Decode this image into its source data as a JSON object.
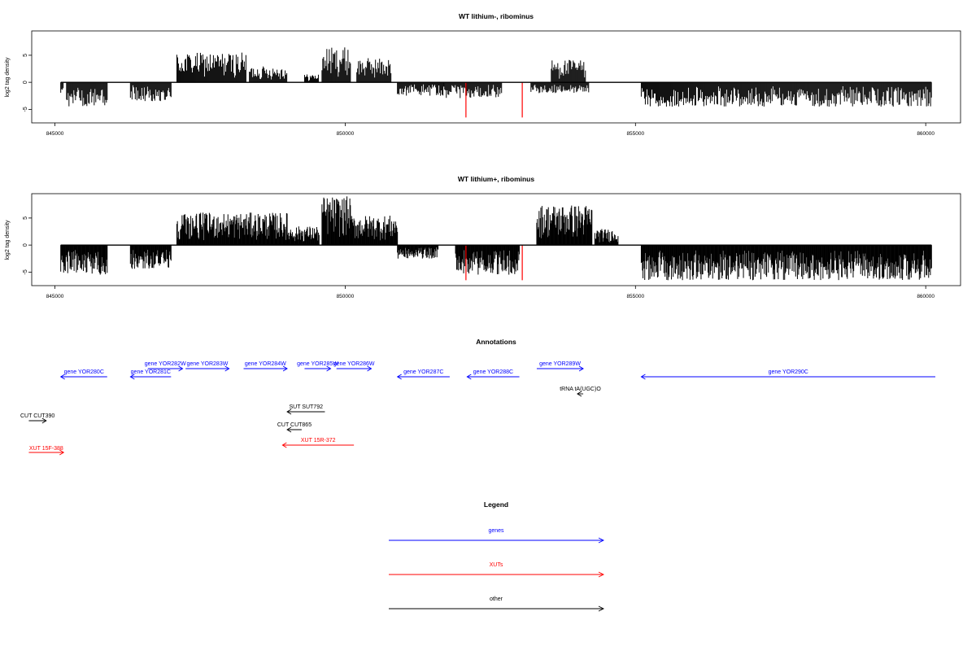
{
  "chart_data": [
    {
      "type": "bar",
      "title": "WT lithium-, ribominus",
      "xlabel": "",
      "ylabel": "log2 tag density",
      "xlim": [
        844600,
        860600
      ],
      "ylim": [
        -7.5,
        9.5
      ],
      "xticks": [
        "845000",
        "850000",
        "855000",
        "860000"
      ],
      "yticks": [
        "-5",
        "0",
        "5"
      ],
      "baseline": 0,
      "colors": {
        "default": "#000000",
        "highlight": "#ff0000"
      },
      "segments": [
        {
          "start": 845100,
          "end": 845150,
          "dir": -1,
          "amp": 2.0,
          "step": 14
        },
        {
          "start": 845200,
          "end": 845900,
          "dir": -1,
          "amp": 4.5,
          "step": 14
        },
        {
          "start": 846300,
          "end": 847000,
          "dir": -1,
          "amp": 3.5,
          "step": 14
        },
        {
          "start": 847100,
          "end": 848300,
          "dir": 1,
          "amp": 5.5,
          "step": 14
        },
        {
          "start": 848350,
          "end": 849000,
          "dir": 1,
          "amp": 3.0,
          "step": 14
        },
        {
          "start": 849300,
          "end": 849550,
          "dir": 1,
          "amp": 1.5,
          "step": 14
        },
        {
          "start": 849600,
          "end": 850100,
          "dir": 1,
          "amp": 6.5,
          "step": 14
        },
        {
          "start": 850200,
          "end": 850800,
          "dir": 1,
          "amp": 4.5,
          "step": 14
        },
        {
          "start": 850900,
          "end": 851700,
          "dir": -1,
          "amp": 2.5,
          "step": 14
        },
        {
          "start": 851700,
          "end": 852700,
          "dir": -1,
          "amp": 3.0,
          "step": 14
        },
        {
          "start": 853200,
          "end": 854200,
          "dir": -1,
          "amp": 2.0,
          "step": 14
        },
        {
          "start": 853550,
          "end": 854150,
          "dir": 1,
          "amp": 4.2,
          "step": 14
        },
        {
          "start": 855100,
          "end": 860100,
          "dir": -1,
          "amp": 4.5,
          "step": 14
        }
      ],
      "highlights": [
        {
          "x": 852080,
          "value": -6.5
        },
        {
          "x": 853050,
          "value": -6.5
        }
      ]
    },
    {
      "type": "bar",
      "title": "WT lithium+, ribominus",
      "xlabel": "",
      "ylabel": "log2 tag density",
      "xlim": [
        844600,
        860600
      ],
      "ylim": [
        -7.5,
        9.5
      ],
      "xticks": [
        "845000",
        "850000",
        "855000",
        "860000"
      ],
      "yticks": [
        "-5",
        "0",
        "5"
      ],
      "baseline": 0,
      "colors": {
        "default": "#000000",
        "highlight": "#ff0000"
      },
      "segments": [
        {
          "start": 845100,
          "end": 845900,
          "dir": -1,
          "amp": 5.5,
          "step": 10
        },
        {
          "start": 846300,
          "end": 847000,
          "dir": -1,
          "amp": 4.5,
          "step": 10
        },
        {
          "start": 847100,
          "end": 849000,
          "dir": 1,
          "amp": 6.0,
          "step": 10
        },
        {
          "start": 849000,
          "end": 849550,
          "dir": 1,
          "amp": 3.5,
          "step": 10
        },
        {
          "start": 849600,
          "end": 850100,
          "dir": 1,
          "amp": 9.0,
          "step": 10
        },
        {
          "start": 850100,
          "end": 850900,
          "dir": 1,
          "amp": 5.5,
          "step": 10
        },
        {
          "start": 850900,
          "end": 851600,
          "dir": -1,
          "amp": 2.5,
          "step": 10
        },
        {
          "start": 851900,
          "end": 853000,
          "dir": -1,
          "amp": 5.5,
          "step": 10
        },
        {
          "start": 853300,
          "end": 854250,
          "dir": 1,
          "amp": 7.5,
          "step": 10
        },
        {
          "start": 854300,
          "end": 854700,
          "dir": 1,
          "amp": 3.0,
          "step": 10
        },
        {
          "start": 855100,
          "end": 860100,
          "dir": -1,
          "amp": 6.5,
          "step": 10
        }
      ],
      "highlights": [
        {
          "x": 852080,
          "value": -6.5
        },
        {
          "x": 853050,
          "value": -6.5
        }
      ]
    }
  ],
  "annotations": {
    "title": "Annotations",
    "features": [
      {
        "label": "gene YOR280C",
        "start": 845100,
        "end": 845900,
        "strand": "-",
        "kind": "genes",
        "row": 0
      },
      {
        "label": "gene YOR281C",
        "start": 846300,
        "end": 847000,
        "strand": "-",
        "kind": "genes",
        "row": 0
      },
      {
        "label": "gene YOR282W",
        "start": 846600,
        "end": 847200,
        "strand": "+",
        "kind": "genes",
        "row": 1
      },
      {
        "label": "gene YOR283W",
        "start": 847250,
        "end": 848000,
        "strand": "+",
        "kind": "genes",
        "row": 1
      },
      {
        "label": "gene YOR284W",
        "start": 848250,
        "end": 849000,
        "strand": "+",
        "kind": "genes",
        "row": 1
      },
      {
        "label": "gene YOR285W",
        "start": 849300,
        "end": 849750,
        "strand": "+",
        "kind": "genes",
        "row": 1
      },
      {
        "label": "gene YOR286W",
        "start": 849850,
        "end": 850450,
        "strand": "+",
        "kind": "genes",
        "row": 1
      },
      {
        "label": "gene YOR287C",
        "start": 850900,
        "end": 851800,
        "strand": "-",
        "kind": "genes",
        "row": 0
      },
      {
        "label": "gene YOR288C",
        "start": 852100,
        "end": 853000,
        "strand": "-",
        "kind": "genes",
        "row": 0
      },
      {
        "label": "gene YOR289W",
        "start": 853300,
        "end": 854100,
        "strand": "+",
        "kind": "genes",
        "row": 1
      },
      {
        "label": "gene YOR290C",
        "start": 855100,
        "end": 860600,
        "strand": "-",
        "kind": "genes",
        "row": 0
      },
      {
        "label": "tRNA tA(UGC)O",
        "start": 854000,
        "end": 854100,
        "strand": "-",
        "kind": "other",
        "row": 2
      },
      {
        "label": "SUT SUT792",
        "start": 849000,
        "end": 849650,
        "strand": "-",
        "kind": "other",
        "row": 3
      },
      {
        "label": "CUT CUT390",
        "start": 844550,
        "end": 844850,
        "strand": "+",
        "kind": "other",
        "row": 4
      },
      {
        "label": "CUT CUT865",
        "start": 849000,
        "end": 849250,
        "strand": "-",
        "kind": "other",
        "row": 5
      },
      {
        "label": "XUT 15F-388",
        "start": 844550,
        "end": 845150,
        "strand": "+",
        "kind": "xuts",
        "row": 6
      },
      {
        "label": "XUT 15R-372",
        "start": 848920,
        "end": 850150,
        "strand": "-",
        "kind": "xuts",
        "row": 7
      }
    ]
  },
  "legend": {
    "title": "Legend",
    "items": [
      {
        "label": "genes",
        "kind": "genes"
      },
      {
        "label": "XUTs",
        "kind": "xuts"
      },
      {
        "label": "other",
        "kind": "other"
      }
    ]
  },
  "kind_colors": {
    "genes": "#0000ff",
    "xuts": "#ff0000",
    "other": "#000000"
  }
}
